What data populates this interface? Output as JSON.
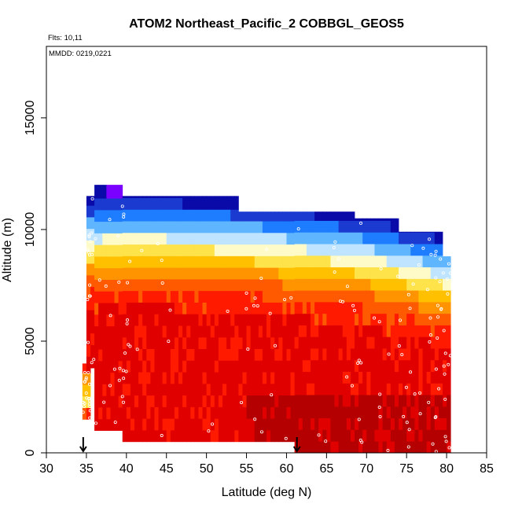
{
  "chart_data": {
    "type": "heatmap",
    "title": "ATOM2 Northeast_Pacific_2 COBBGL_GEOS5",
    "annotations": [
      "Flts: 10,11",
      "MMDD: 0219,0221"
    ],
    "xlabel": "Latitude (deg N)",
    "ylabel": "Altitude (m)",
    "xlim": [
      30,
      85
    ],
    "ylim": [
      0,
      18200
    ],
    "xticks": [
      "30",
      "35",
      "40",
      "45",
      "50",
      "55",
      "60",
      "65",
      "70",
      "75",
      "80",
      "85"
    ],
    "yticks": [
      "0",
      "5000",
      "10000",
      "15000"
    ],
    "grid": false,
    "colormap": [
      "#b40000",
      "#e00000",
      "#ff1a00",
      "#ff5a00",
      "#ff9400",
      "#ffc000",
      "#ffe34a",
      "#fffbc8",
      "#bfe4ff",
      "#5fb6ff",
      "#1e7dff",
      "#1a3ad0",
      "#0a0aa8",
      "#7a00ff"
    ],
    "curtain_columns": [
      {
        "lat_range": [
          34.5,
          35.5
        ],
        "alt_range": [
          1500,
          4000
        ]
      },
      {
        "lat_range": [
          35.0,
          36.0
        ],
        "alt_range": [
          3800,
          11500
        ]
      },
      {
        "lat_range": [
          36.0,
          39.5
        ],
        "alt_range": [
          1000,
          12000
        ]
      },
      {
        "lat_range": [
          39.5,
          40.5
        ],
        "alt_range": [
          500,
          11500
        ]
      },
      {
        "lat_range": [
          40.5,
          54.0
        ],
        "alt_range": [
          500,
          11500
        ]
      },
      {
        "lat_range": [
          54.0,
          61.0
        ],
        "alt_range": [
          500,
          10800
        ]
      },
      {
        "lat_range": [
          61.0,
          68.5
        ],
        "alt_range": [
          0,
          10800
        ]
      },
      {
        "lat_range": [
          68.5,
          74.0
        ],
        "alt_range": [
          0,
          10500
        ]
      },
      {
        "lat_range": [
          74.0,
          78.5
        ],
        "alt_range": [
          0,
          9900
        ]
      },
      {
        "lat_range": [
          78.5,
          79.5
        ],
        "alt_range": [
          0,
          9900
        ]
      },
      {
        "lat_range": [
          79.5,
          80.5
        ],
        "alt_range": [
          0,
          8800
        ]
      }
    ],
    "flight_markers_lat": [
      34.6,
      61.3
    ],
    "flight_track_points_count": 180
  }
}
